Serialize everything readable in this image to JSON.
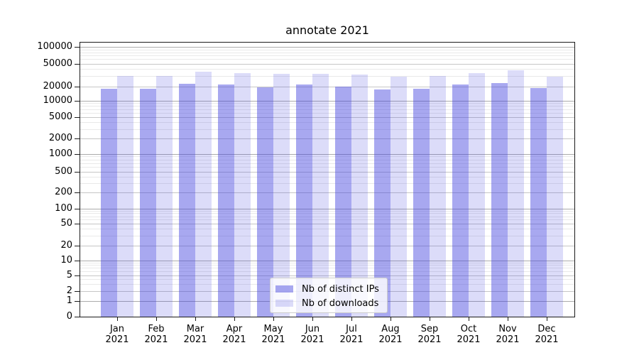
{
  "title": "annotate 2021",
  "chart_data": {
    "type": "bar",
    "title": "annotate 2021",
    "categories": [
      "Jan",
      "Feb",
      "Mar",
      "Apr",
      "May",
      "Jun",
      "Jul",
      "Aug",
      "Sep",
      "Oct",
      "Nov",
      "Dec"
    ],
    "year": "2021",
    "series": [
      {
        "name": "Nb of distinct IPs",
        "color": "rgba(62,62,222,0.45)",
        "values": [
          17700,
          17600,
          22000,
          21500,
          19200,
          21600,
          20100,
          17300,
          18100,
          21800,
          22900,
          18300
        ]
      },
      {
        "name": "Nb of downloads",
        "color": "rgba(62,62,222,0.18)",
        "values": [
          30400,
          30100,
          36300,
          33800,
          33500,
          33400,
          32300,
          29200,
          30700,
          33800,
          38100,
          29300
        ]
      }
    ],
    "yscale": "symlog",
    "y_ticks": [
      0,
      1,
      2,
      5,
      10,
      20,
      50,
      100,
      200,
      500,
      1000,
      2000,
      5000,
      10000,
      20000,
      50000,
      100000
    ],
    "ylim": [
      0,
      120000
    ],
    "grid": "both",
    "legend_position": "lower center"
  },
  "colors": {
    "bar_base": "#3e3ede",
    "decade_grid": "#ababab",
    "labeled_grid": "#c6c6c6",
    "minor_grid": "#e9e9e9",
    "spine": "#1a1a1a",
    "legend_border": "#cccccc"
  }
}
